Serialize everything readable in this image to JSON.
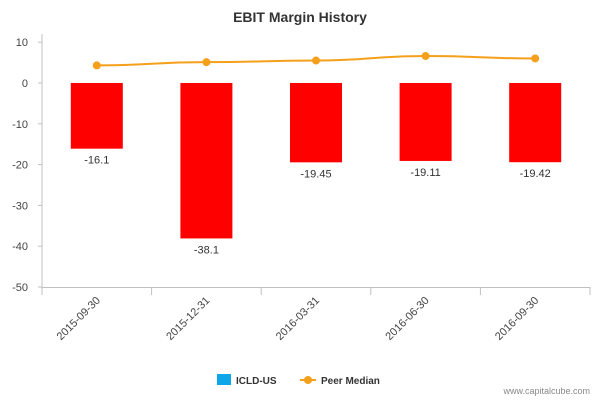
{
  "chart_data": {
    "type": "bar",
    "title": "EBIT Margin History",
    "xlabel": "",
    "ylabel": "",
    "categories": [
      "2015-09-30",
      "2015-12-31",
      "2016-03-31",
      "2016-06-30",
      "2016-09-30"
    ],
    "series": [
      {
        "name": "ICLD-US",
        "type": "bar",
        "color": "#ff0000",
        "legend_color": "#0ea5e9",
        "values": [
          -16.1,
          -38.1,
          -19.45,
          -19.11,
          -19.42
        ],
        "labels": [
          "-16.1",
          "-38.1",
          "-19.45",
          "-19.11",
          "-19.42"
        ]
      },
      {
        "name": "Peer Median",
        "type": "line",
        "color": "#f5a01a",
        "values": [
          4.3,
          5.1,
          5.5,
          6.6,
          6.0
        ]
      }
    ],
    "yticks": [
      10,
      0,
      -10,
      -20,
      -30,
      -40,
      -50
    ],
    "ylim": [
      -50,
      12
    ],
    "grid": false,
    "legend": "bottom-center"
  },
  "credit": "www.capitalcube.com"
}
